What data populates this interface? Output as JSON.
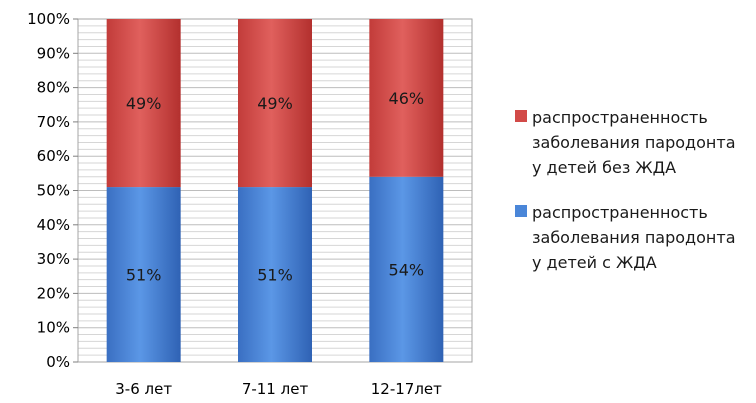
{
  "chart_data": {
    "type": "bar",
    "stacked": true,
    "percent_stacked": true,
    "categories": [
      "3-6 лет",
      "7-11 лет",
      "12-17лет"
    ],
    "series": [
      {
        "name": "распространенность заболевания пародонта у детей с ЖДА",
        "legend_lines": [
          "распространенность",
          "заболевания пародонта",
          "у детей с ЖДА"
        ],
        "values": [
          51,
          51,
          54
        ],
        "labels": [
          "51%",
          "51%",
          "54%"
        ],
        "color": "#4a86d8"
      },
      {
        "name": "распространенность заболевания пародонта у детей без ЖДА",
        "legend_lines": [
          "распространенность",
          "заболевания пародонта",
          "у детей без ЖДА"
        ],
        "values": [
          49,
          49,
          46
        ],
        "labels": [
          "49%",
          "49%",
          "46%"
        ],
        "color": "#d24a48"
      }
    ],
    "ylim": [
      0,
      100
    ],
    "yticks": [
      0,
      10,
      20,
      30,
      40,
      50,
      60,
      70,
      80,
      90,
      100
    ],
    "ytick_labels": [
      "0%",
      "10%",
      "20%",
      "30%",
      "40%",
      "50%",
      "60%",
      "70%",
      "80%",
      "90%",
      "100%"
    ],
    "grid": true,
    "legend_position": "right",
    "title": "",
    "xlabel": "",
    "ylabel": ""
  }
}
